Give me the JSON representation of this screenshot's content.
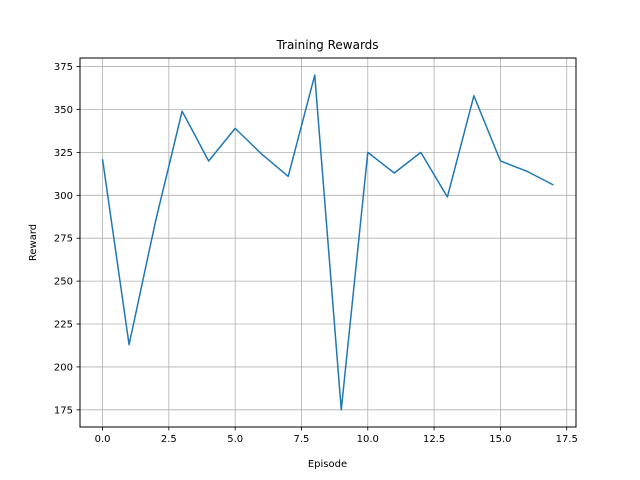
{
  "chart_data": {
    "type": "line",
    "title": "Training Rewards",
    "xlabel": "Episode",
    "ylabel": "Reward",
    "xlim": [
      -0.85,
      17.85
    ],
    "ylim": [
      165,
      380
    ],
    "xticks": [
      0.0,
      2.5,
      5.0,
      7.5,
      10.0,
      12.5,
      15.0,
      17.5
    ],
    "xtick_labels": [
      "0.0",
      "2.5",
      "5.0",
      "7.5",
      "10.0",
      "12.5",
      "15.0",
      "17.5"
    ],
    "yticks": [
      175,
      200,
      225,
      250,
      275,
      300,
      325,
      350,
      375
    ],
    "ytick_labels": [
      "175",
      "200",
      "225",
      "250",
      "275",
      "300",
      "325",
      "350",
      "375"
    ],
    "grid": true,
    "series": [
      {
        "color": "#1f77b4",
        "x": [
          0,
          1,
          2,
          3,
          4,
          5,
          6,
          7,
          8,
          9,
          10,
          11,
          12,
          13,
          14,
          15,
          16,
          17
        ],
        "values": [
          321,
          213,
          285,
          349,
          320,
          339,
          324,
          311,
          370,
          175,
          325,
          313,
          325,
          299,
          358,
          320,
          314,
          306
        ]
      }
    ]
  }
}
